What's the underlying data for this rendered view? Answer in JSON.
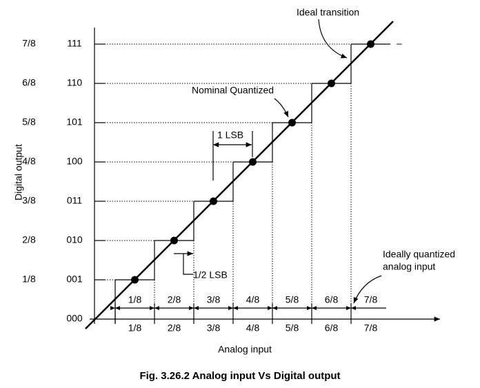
{
  "axis_titles": {
    "y": "Digital output",
    "x": "Analog input"
  },
  "codes": [
    "000",
    "001",
    "010",
    "011",
    "100",
    "101",
    "110",
    "111"
  ],
  "levels": [
    "1/8",
    "2/8",
    "3/8",
    "4/8",
    "5/8",
    "6/8",
    "7/8"
  ],
  "x_labels_top": [
    "1/8",
    "2/8",
    "3/8",
    "4/8",
    "5/8",
    "6/8",
    "7/8"
  ],
  "x_labels_bottom": [
    "1/8",
    "2/8",
    "3/8",
    "4/8",
    "5/8",
    "6/8",
    "7/8"
  ],
  "annotations": {
    "ideal_transition": "Ideal transition",
    "nominal_quantized": "Nominal Quantized",
    "one_lsb": "1 LSB",
    "half_lsb": "1/2 LSB",
    "ideally_quantized": [
      "Ideally quantized",
      "analog input"
    ],
    "dash": "–"
  },
  "caption": "Fig. 3.26.2 Analog input Vs Digital output"
}
